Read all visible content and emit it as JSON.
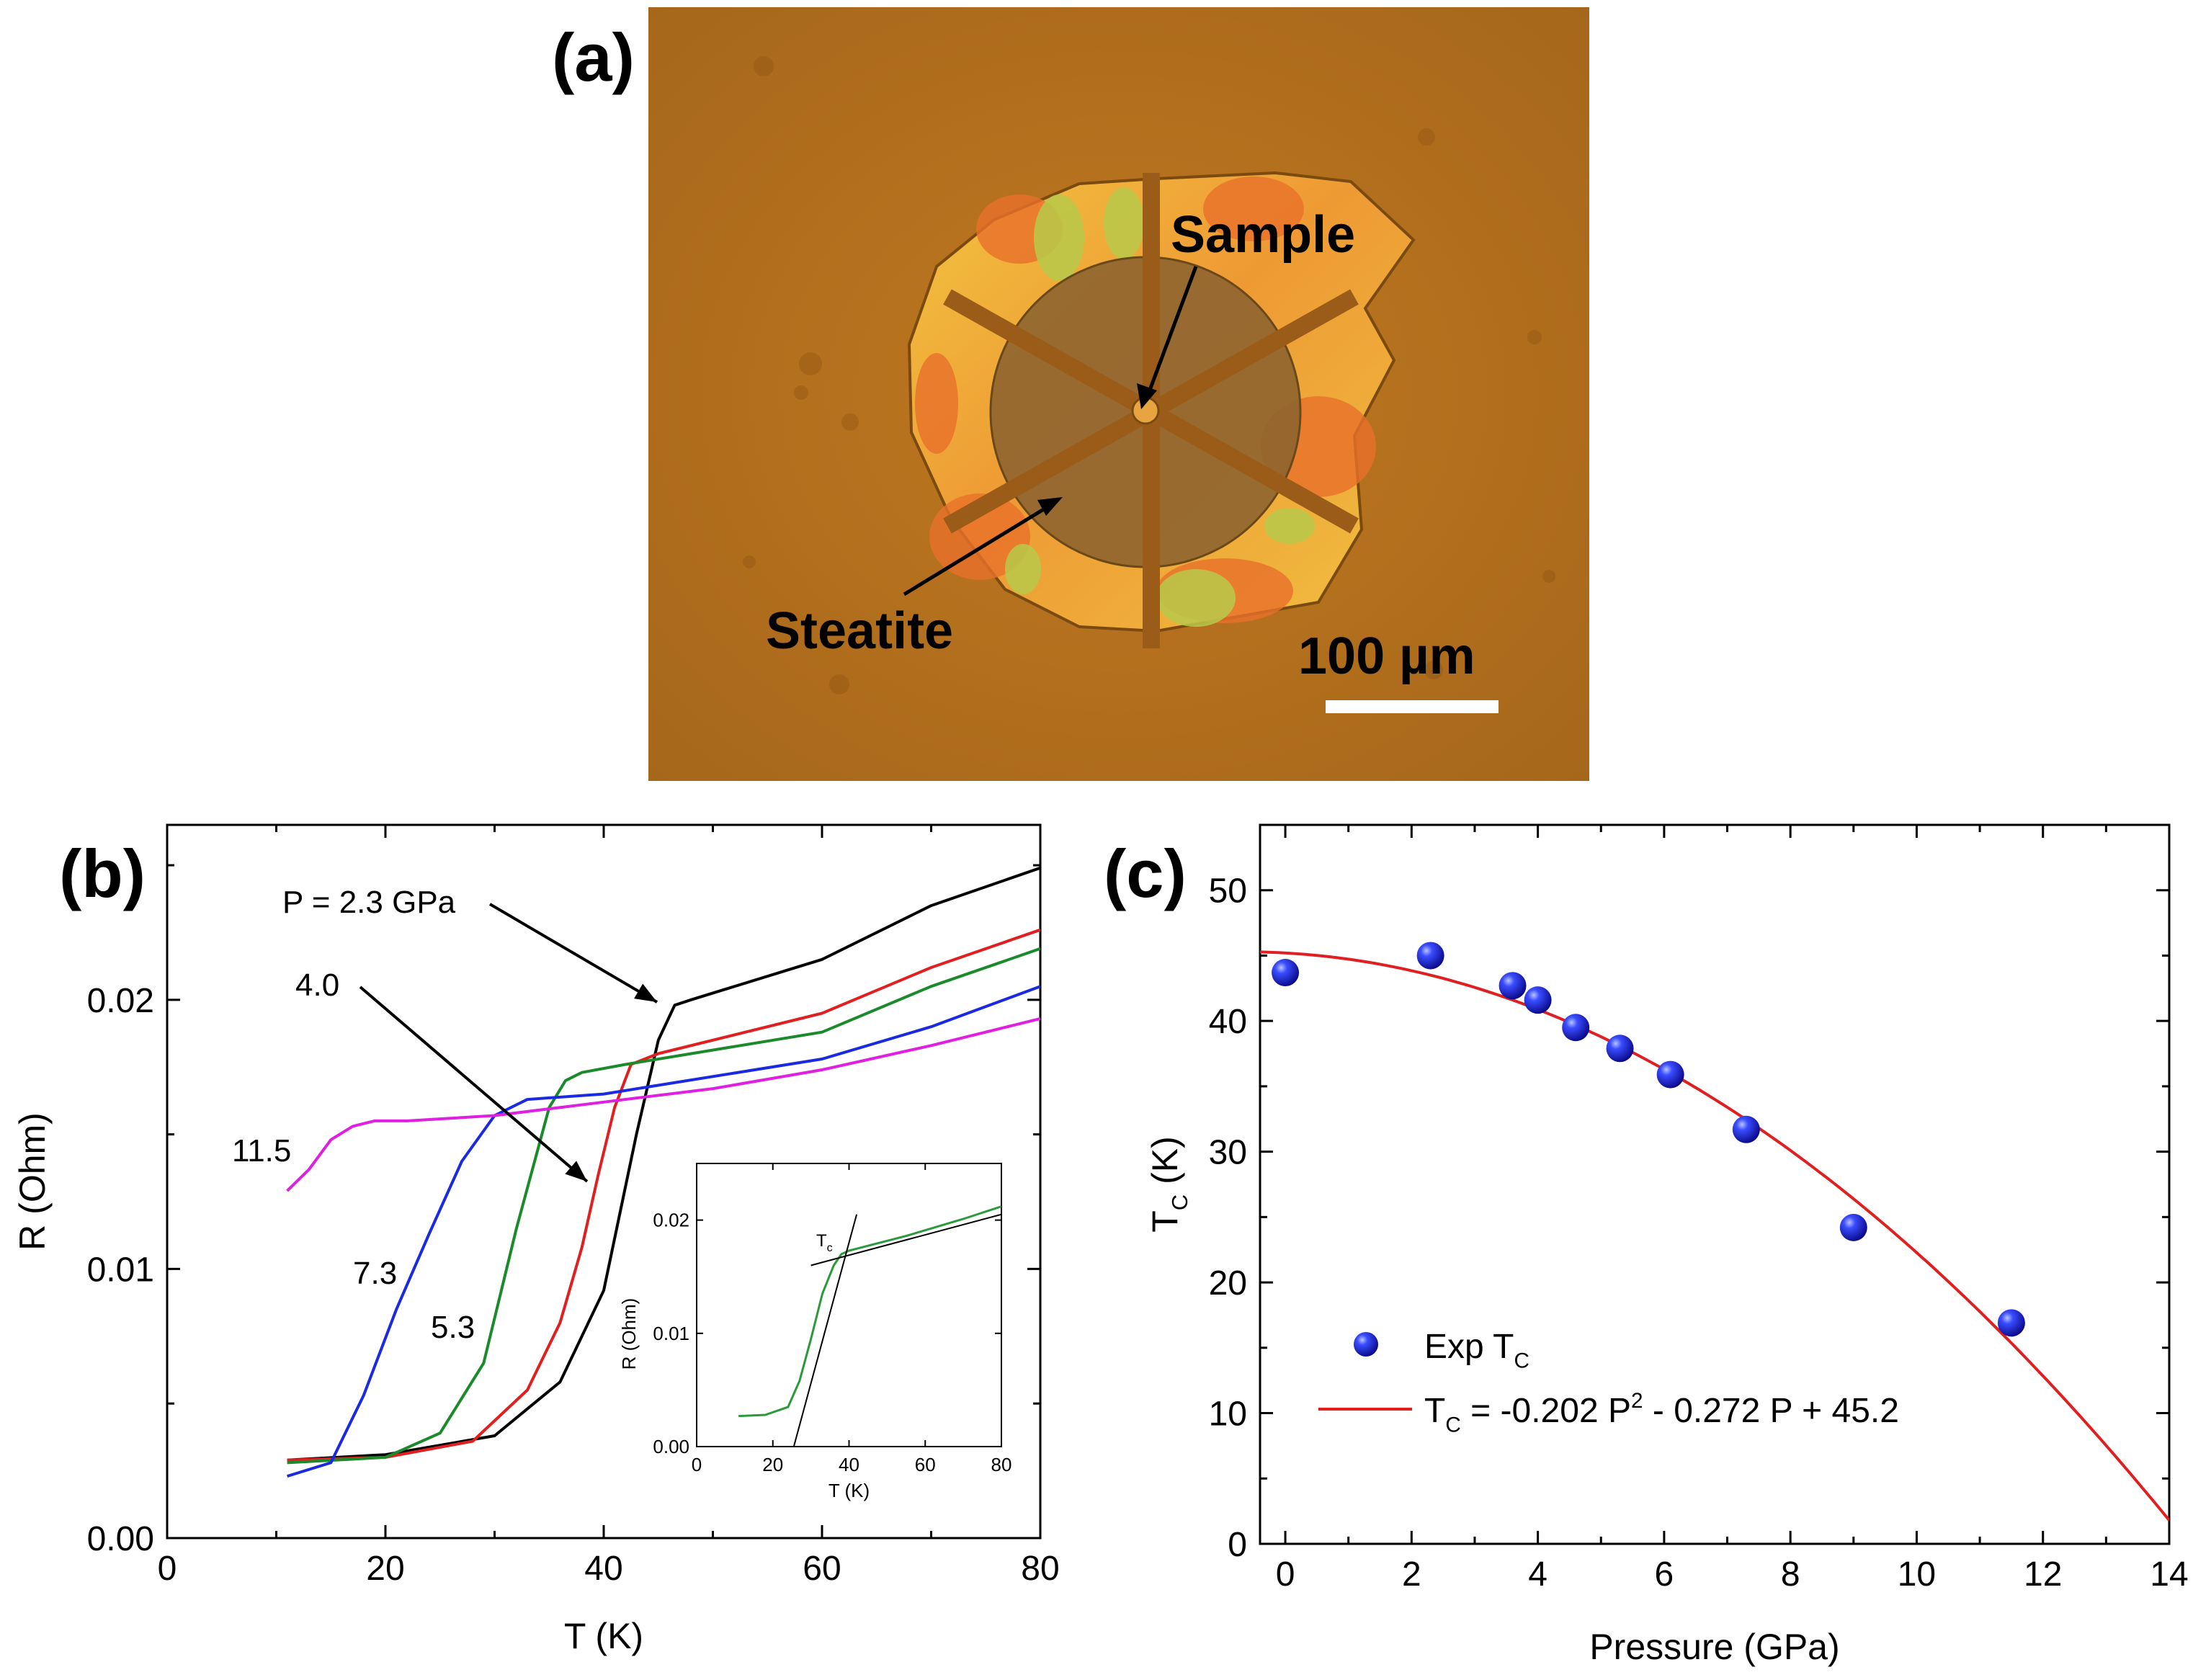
{
  "panel_a": {
    "label": "(a)",
    "annotations": {
      "sample": "Sample",
      "steatite": "Steatite",
      "scale": "100 µm"
    },
    "colors": {
      "background": "#b56e1c",
      "gold": "#f0b63a",
      "orange": "#e8702a",
      "green": "#b4c84a",
      "steatite": "#8e6430"
    }
  },
  "chart_data": [
    {
      "panel_label": "(b)",
      "type": "line",
      "title": "",
      "xlabel": "T (K)",
      "ylabel": "R (Ohm)",
      "xlim": [
        0,
        80
      ],
      "ylim": [
        0,
        0.0265
      ],
      "xticks": [
        "0",
        "20",
        "40",
        "60",
        "80"
      ],
      "yticks": [
        "0.00",
        "0.01",
        "0.02"
      ],
      "series": [
        {
          "pressure": "2.3",
          "color": "#000000",
          "x": [
            11,
            20,
            30,
            36,
            40,
            43,
            45,
            46.5,
            48,
            60,
            70,
            80
          ],
          "y": [
            0.0029,
            0.0031,
            0.0038,
            0.0058,
            0.0092,
            0.015,
            0.0185,
            0.0198,
            0.02,
            0.0215,
            0.0235,
            0.0249
          ]
        },
        {
          "pressure": "4.0",
          "color": "#e02020",
          "x": [
            11,
            20,
            28,
            33,
            36,
            38,
            39.5,
            41,
            42.5,
            45,
            60,
            70,
            80
          ],
          "y": [
            0.0029,
            0.003,
            0.0036,
            0.0055,
            0.008,
            0.0108,
            0.0135,
            0.016,
            0.0176,
            0.018,
            0.0195,
            0.0212,
            0.0226
          ]
        },
        {
          "pressure": "5.3",
          "color": "#1a8a2a",
          "x": [
            11,
            20,
            25,
            29,
            32,
            35,
            36.5,
            38,
            42,
            60,
            70,
            80
          ],
          "y": [
            0.0028,
            0.003,
            0.0039,
            0.0065,
            0.0115,
            0.016,
            0.017,
            0.0173,
            0.0176,
            0.0188,
            0.0205,
            0.0219
          ]
        },
        {
          "pressure": "7.3",
          "color": "#1a2ae0",
          "x": [
            11,
            15,
            18,
            21,
            24,
            27,
            30,
            33,
            40,
            60,
            70,
            80
          ],
          "y": [
            0.0023,
            0.0028,
            0.0053,
            0.0085,
            0.0113,
            0.014,
            0.0157,
            0.0163,
            0.0165,
            0.0178,
            0.019,
            0.0205
          ]
        },
        {
          "pressure": "11.5",
          "color": "#e020e0",
          "x": [
            11,
            13,
            15,
            17,
            19,
            22,
            30,
            40,
            50,
            60,
            70,
            80
          ],
          "y": [
            0.0129,
            0.0137,
            0.0148,
            0.0153,
            0.0155,
            0.0155,
            0.0157,
            0.0162,
            0.0167,
            0.0174,
            0.0183,
            0.0193
          ]
        }
      ],
      "series_labels": [
        {
          "text": "P = 2.3 GPa",
          "series": 0
        },
        {
          "text": "4.0",
          "series": 1
        },
        {
          "text": "5.3",
          "series": 2
        },
        {
          "text": "7.3",
          "series": 3
        },
        {
          "text": "11.5",
          "series": 4
        }
      ],
      "inset": {
        "type": "line",
        "xlabel": "T (K)",
        "ylabel": "R (Ohm)",
        "xlim": [
          0,
          80
        ],
        "ylim": [
          0,
          0.025
        ],
        "xticks": [
          "0",
          "20",
          "40",
          "60",
          "80"
        ],
        "yticks": [
          "0.00",
          "0.01",
          "0.02"
        ],
        "annotation": "Tc",
        "series": [
          {
            "color": "#2a9a3a",
            "x": [
              11,
              18,
              24,
              27,
              30,
              33,
              36,
              38,
              40,
              55,
              70,
              80
            ],
            "y": [
              0.0027,
              0.0028,
              0.0035,
              0.0058,
              0.0095,
              0.0135,
              0.016,
              0.017,
              0.0173,
              0.0186,
              0.0201,
              0.0212
            ]
          }
        ],
        "tangents": [
          {
            "x": [
              25.5,
              42
            ],
            "y": [
              0.0,
              0.0205
            ]
          },
          {
            "x": [
              30,
              80
            ],
            "y": [
              0.016,
              0.0205
            ]
          }
        ]
      }
    },
    {
      "panel_label": "(c)",
      "type": "scatter",
      "title": "",
      "xlabel": "Pressure (GPa)",
      "ylabel": "T_C (K)",
      "xlim": [
        -0.4,
        14
      ],
      "ylim": [
        0,
        55
      ],
      "xticks": [
        "0",
        "2",
        "4",
        "6",
        "8",
        "10",
        "12",
        "14"
      ],
      "yticks": [
        "0",
        "10",
        "20",
        "30",
        "40",
        "50"
      ],
      "series": [
        {
          "name": "Exp T_C",
          "color": "#1a1ae0",
          "x": [
            0,
            2.3,
            3.6,
            4.0,
            4.6,
            5.3,
            6.1,
            7.3,
            9.0,
            11.5
          ],
          "y": [
            43.7,
            45.0,
            42.7,
            41.6,
            39.5,
            37.9,
            35.9,
            31.7,
            24.2,
            16.9
          ]
        },
        {
          "name": "T_C = -0.202 P^2 - 0.272 P + 45.2",
          "color": "#e02020",
          "type": "fit",
          "fit": {
            "a": -0.202,
            "b": -0.272,
            "c": 45.2
          },
          "x_range": [
            -0.4,
            14
          ]
        }
      ]
    }
  ]
}
